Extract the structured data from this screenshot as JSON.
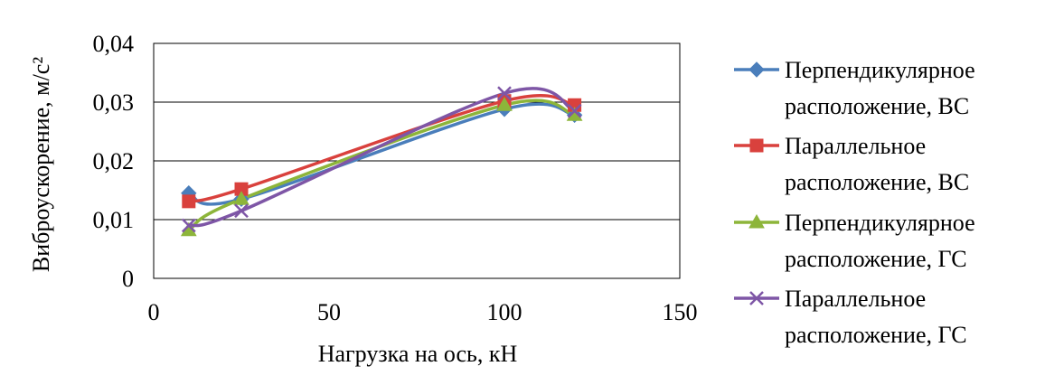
{
  "chart_data": {
    "type": "line",
    "title": "",
    "xlabel": "Нагрузка на ось, кН",
    "ylabel": "Виброускорение, м/с²",
    "xlim": [
      0,
      150
    ],
    "ylim": [
      0,
      0.04
    ],
    "x_ticks": [
      "0",
      "50",
      "100",
      "150"
    ],
    "y_ticks": [
      "0",
      "0,01",
      "0,02",
      "0,03",
      "0,04"
    ],
    "grid": "horizontal",
    "legend_position": "right",
    "series": [
      {
        "name": "Перпендикулярное расположение, ВС",
        "name_lines": [
          "Перпендикулярное",
          "расположение, ВС"
        ],
        "color": "#4A7EBB",
        "marker": "diamond",
        "points": [
          [
            10,
            0.0145
          ],
          [
            25,
            0.0135
          ],
          [
            100,
            0.0288
          ],
          [
            120,
            0.0278
          ]
        ]
      },
      {
        "name": "Параллельное расположение, ВС",
        "name_lines": [
          "Параллельное",
          "расположение, ВС"
        ],
        "color": "#D9413D",
        "marker": "square",
        "points": [
          [
            10,
            0.0131
          ],
          [
            25,
            0.0152
          ],
          [
            100,
            0.0302
          ],
          [
            120,
            0.0295
          ]
        ]
      },
      {
        "name": "Перпендикулярное расположение, ГС",
        "name_lines": [
          "Перпендикулярное",
          "расположение, ГС"
        ],
        "color": "#8DB53A",
        "marker": "triangle",
        "points": [
          [
            10,
            0.0082
          ],
          [
            25,
            0.0135
          ],
          [
            100,
            0.0295
          ],
          [
            120,
            0.0278
          ]
        ]
      },
      {
        "name": "Параллельное расположение, ГС",
        "name_lines": [
          "Параллельное",
          "расположение, ГС"
        ],
        "color": "#7E56A6",
        "marker": "cross",
        "points": [
          [
            10,
            0.009
          ],
          [
            25,
            0.0115
          ],
          [
            100,
            0.0315
          ],
          [
            120,
            0.0285
          ]
        ]
      }
    ]
  }
}
